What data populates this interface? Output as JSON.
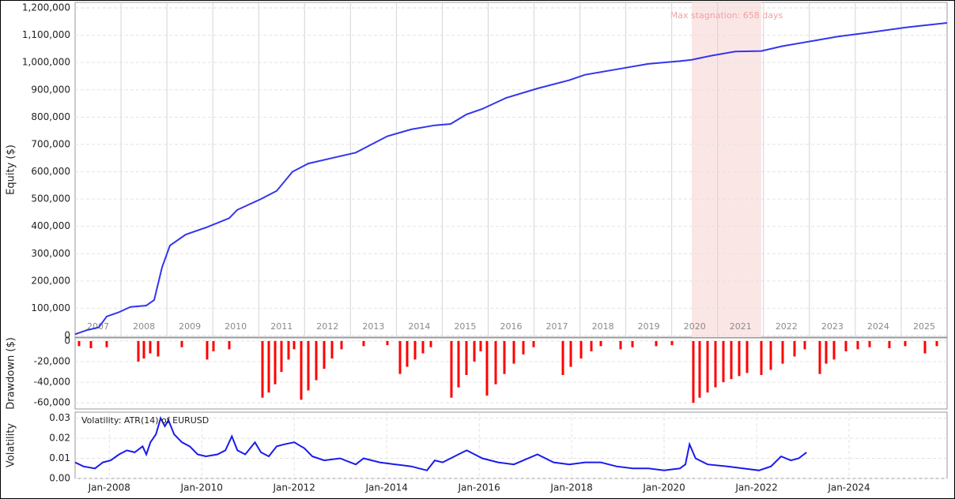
{
  "chart_data": [
    {
      "type": "line",
      "y_label": "Equity ($)",
      "categories": [
        "2007",
        "2008",
        "2009",
        "2010",
        "2011",
        "2012",
        "2013",
        "2014",
        "2015",
        "2016",
        "2017",
        "2018",
        "2019",
        "2020",
        "2021",
        "2022",
        "2023",
        "2024",
        "2025"
      ],
      "xlim": [
        0,
        1103
      ],
      "ylim": [
        0,
        1200000
      ],
      "yticks": [
        0,
        {
          "value": 100000,
          "label": "100,000"
        },
        {
          "value": 200000,
          "label": "200,000"
        },
        {
          "value": 300000,
          "label": "300,000"
        },
        {
          "value": 400000,
          "label": "400,000"
        },
        {
          "value": 500000,
          "label": "500,000"
        },
        {
          "value": 600000,
          "label": "600,000"
        },
        {
          "value": 700000,
          "label": "700,000"
        },
        {
          "value": 800000,
          "label": "800,000"
        },
        {
          "value": 900000,
          "label": "900,000"
        },
        {
          "value": 1000000,
          "label": "1,000,000"
        },
        {
          "value": 1100000,
          "label": "1,100,000"
        },
        {
          "value": 1200000,
          "label": "1,200,000"
        }
      ],
      "grid": true,
      "stagnation": {
        "label": "Max stagnation: 658 days",
        "start": 780,
        "end": 868,
        "color": "#fbe6e6"
      },
      "series": [
        {
          "color": "#3434ee",
          "x": [
            0,
            15,
            30,
            40,
            55,
            70,
            90,
            100,
            110,
            120,
            140,
            165,
            195,
            205,
            235,
            255,
            275,
            295,
            325,
            355,
            375,
            395,
            425,
            455,
            475,
            495,
            515,
            545,
            585,
            625,
            645,
            685,
            725,
            765,
            780,
            805,
            835,
            868,
            895,
            935,
            965,
            1005,
            1055,
            1103
          ],
          "values": [
            5000,
            20000,
            30000,
            70000,
            85000,
            105000,
            110000,
            130000,
            250000,
            330000,
            370000,
            395000,
            430000,
            460000,
            500000,
            530000,
            600000,
            630000,
            650000,
            670000,
            700000,
            730000,
            755000,
            770000,
            775000,
            810000,
            830000,
            870000,
            905000,
            935000,
            955000,
            975000,
            995000,
            1005000,
            1010000,
            1025000,
            1040000,
            1042000,
            1060000,
            1080000,
            1095000,
            1110000,
            1130000,
            1145000
          ]
        }
      ]
    },
    {
      "type": "bar",
      "y_label": "Drawdown ($)",
      "color": "#ff0000",
      "xlim": [
        0,
        1103
      ],
      "ylim": [
        -66000,
        3000
      ],
      "yticks": [
        0,
        {
          "value": -20000,
          "label": "-20,000"
        },
        {
          "value": -40000,
          "label": "-40,000"
        },
        {
          "value": -60000,
          "label": "-60,000"
        }
      ],
      "grid": true,
      "x": [
        5,
        20,
        40,
        80,
        87,
        95,
        105,
        135,
        167,
        175,
        195,
        237,
        245,
        253,
        261,
        270,
        277,
        286,
        295,
        305,
        315,
        325,
        337,
        365,
        395,
        411,
        420,
        430,
        440,
        450,
        476,
        485,
        495,
        505,
        513,
        521,
        532,
        543,
        555,
        567,
        580,
        617,
        627,
        640,
        653,
        665,
        690,
        705,
        735,
        755,
        782,
        790,
        800,
        810,
        820,
        830,
        840,
        850,
        868,
        880,
        895,
        910,
        923,
        942,
        950,
        960,
        975,
        990,
        1005,
        1030,
        1050,
        1075,
        1090
      ],
      "values": [
        -5000,
        -7000,
        -6000,
        -20000,
        -17000,
        -12000,
        -15000,
        -6000,
        -18000,
        -10000,
        -8000,
        -55000,
        -50000,
        -42000,
        -30000,
        -18000,
        -8000,
        -57000,
        -48000,
        -38000,
        -27000,
        -17000,
        -8000,
        -5000,
        -4000,
        -32000,
        -25000,
        -18000,
        -12000,
        -6000,
        -55000,
        -45000,
        -33000,
        -20000,
        -10000,
        -53000,
        -42000,
        -32000,
        -22000,
        -13000,
        -6000,
        -33000,
        -25000,
        -17000,
        -10000,
        -5000,
        -8000,
        -6000,
        -5000,
        -4000,
        -60000,
        -55000,
        -50000,
        -45000,
        -40000,
        -37000,
        -34000,
        -31000,
        -33000,
        -28000,
        -22000,
        -15000,
        -8000,
        -32000,
        -22000,
        -18000,
        -10000,
        -8000,
        -6000,
        -7000,
        -5000,
        -12000,
        -5000
      ]
    },
    {
      "type": "line",
      "y_label": "Volatility",
      "legend": "Volatility: ATR(14) of EURUSD",
      "xlim": [
        2007.26,
        2026.12
      ],
      "ylim": [
        0,
        0.033
      ],
      "xticks": [
        {
          "value": 2008,
          "label": "Jan-2008"
        },
        {
          "value": 2010,
          "label": "Jan-2010"
        },
        {
          "value": 2012,
          "label": "Jan-2012"
        },
        {
          "value": 2014,
          "label": "Jan-2014"
        },
        {
          "value": 2016,
          "label": "Jan-2016"
        },
        {
          "value": 2018,
          "label": "Jan-2018"
        },
        {
          "value": 2020,
          "label": "Jan-2020"
        },
        {
          "value": 2022,
          "label": "Jan-2022"
        },
        {
          "value": 2024,
          "label": "Jan-2024"
        }
      ],
      "yticks": [
        {
          "value": 0,
          "label": "0.00"
        },
        {
          "value": 0.01,
          "label": "0.01"
        },
        {
          "value": 0.02,
          "label": "0.02"
        },
        {
          "value": 0.03,
          "label": "0.03"
        }
      ],
      "grid": true,
      "series": [
        {
          "color": "#1a1aee",
          "x": [
            2007.26,
            2007.44,
            2007.69,
            2007.86,
            2008.03,
            2008.21,
            2008.38,
            2008.55,
            2008.72,
            2008.8,
            2008.89,
            2009.01,
            2009.11,
            2009.2,
            2009.28,
            2009.4,
            2009.57,
            2009.74,
            2009.91,
            2010.09,
            2010.34,
            2010.51,
            2010.65,
            2010.77,
            2010.94,
            2011.15,
            2011.28,
            2011.45,
            2011.62,
            2011.79,
            2012.0,
            2012.22,
            2012.39,
            2012.65,
            2012.99,
            2013.33,
            2013.5,
            2013.85,
            2014.19,
            2014.53,
            2014.87,
            2015.04,
            2015.21,
            2015.64,
            2015.73,
            2015.9,
            2016.07,
            2016.41,
            2016.75,
            2017.26,
            2017.61,
            2017.95,
            2018.29,
            2018.63,
            2018.97,
            2019.32,
            2019.66,
            2020.0,
            2020.34,
            2020.46,
            2020.55,
            2020.68,
            2020.94,
            2021.37,
            2021.71,
            2022.05,
            2022.31,
            2022.53,
            2022.74,
            2022.91,
            2023.08
          ],
          "values": [
            0.008,
            0.006,
            0.005,
            0.008,
            0.009,
            0.012,
            0.014,
            0.013,
            0.016,
            0.012,
            0.018,
            0.022,
            0.03,
            0.026,
            0.029,
            0.022,
            0.018,
            0.016,
            0.012,
            0.011,
            0.012,
            0.014,
            0.021,
            0.014,
            0.012,
            0.018,
            0.013,
            0.011,
            0.016,
            0.017,
            0.018,
            0.015,
            0.011,
            0.009,
            0.01,
            0.007,
            0.01,
            0.008,
            0.007,
            0.006,
            0.004,
            0.009,
            0.008,
            0.013,
            0.014,
            0.012,
            0.01,
            0.008,
            0.007,
            0.012,
            0.008,
            0.007,
            0.008,
            0.008,
            0.006,
            0.005,
            0.005,
            0.004,
            0.005,
            0.007,
            0.017,
            0.01,
            0.007,
            0.006,
            0.005,
            0.004,
            0.006,
            0.011,
            0.009,
            0.01,
            0.013
          ]
        }
      ]
    }
  ]
}
